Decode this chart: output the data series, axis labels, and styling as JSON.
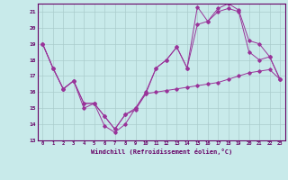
{
  "xlabel": "Windchill (Refroidissement éolien,°C)",
  "bg_color": "#c8eaea",
  "line_color": "#993399",
  "grid_color": "#aacccc",
  "axis_color": "#660066",
  "ylim": [
    13,
    21.5
  ],
  "xlim": [
    -0.5,
    23.5
  ],
  "yticks": [
    13,
    14,
    15,
    16,
    17,
    18,
    19,
    20,
    21
  ],
  "xticks": [
    0,
    1,
    2,
    3,
    4,
    5,
    6,
    7,
    8,
    9,
    10,
    11,
    12,
    13,
    14,
    15,
    16,
    17,
    18,
    19,
    20,
    21,
    22,
    23
  ],
  "series1": [
    19,
    17.5,
    16.2,
    16.7,
    15.0,
    15.3,
    13.9,
    13.5,
    14.0,
    15.0,
    16.0,
    17.5,
    18.0,
    18.8,
    17.5,
    20.2,
    20.4,
    21.0,
    21.2,
    21.0,
    18.5,
    18.0,
    18.2,
    16.8
  ],
  "series2": [
    19,
    17.5,
    16.2,
    16.7,
    15.3,
    15.3,
    14.5,
    13.7,
    14.6,
    15.0,
    15.9,
    16.0,
    16.1,
    16.2,
    16.3,
    16.4,
    16.5,
    16.6,
    16.8,
    17.0,
    17.2,
    17.3,
    17.4,
    16.8
  ],
  "series3": [
    19,
    17.5,
    16.2,
    16.7,
    15.3,
    15.3,
    14.5,
    13.7,
    14.6,
    14.9,
    15.9,
    17.5,
    18.0,
    18.8,
    17.5,
    21.3,
    20.4,
    21.2,
    21.5,
    21.1,
    19.2,
    19.0,
    18.2,
    16.8
  ]
}
